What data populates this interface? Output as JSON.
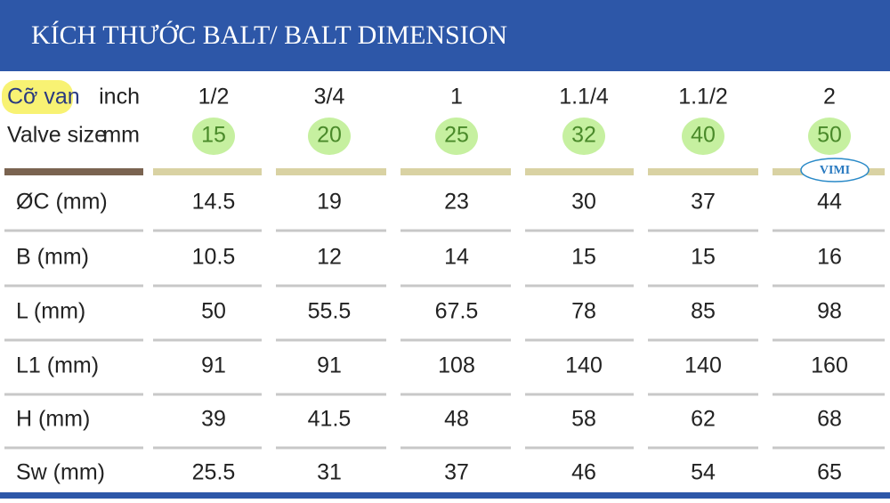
{
  "header": {
    "title": "KÍCH THƯỚC BALT/ BALT DIMENSION"
  },
  "table": {
    "size_label_vi": "Cỡ van",
    "size_label_en": "Valve size",
    "inch_unit": "inch",
    "mm_unit": "mm",
    "inch": [
      "1/2",
      "3/4",
      "1",
      "1.1/4",
      "1.1/2",
      "2"
    ],
    "mm": [
      "15",
      "20",
      "25",
      "32",
      "40",
      "50"
    ],
    "rows": [
      {
        "label": "ØC (mm)",
        "values": [
          "14.5",
          "19",
          "23",
          "30",
          "37",
          "44"
        ]
      },
      {
        "label": "B (mm)",
        "values": [
          "10.5",
          "12",
          "14",
          "15",
          "15",
          "16"
        ]
      },
      {
        "label": "L (mm)",
        "values": [
          "50",
          "55.5",
          "67.5",
          "78",
          "85",
          "98"
        ]
      },
      {
        "label": "L1 (mm)",
        "values": [
          "91",
          "91",
          "108",
          "140",
          "140",
          "160"
        ]
      },
      {
        "label": "H (mm)",
        "values": [
          "39",
          "41.5",
          "48",
          "58",
          "62",
          "68"
        ]
      },
      {
        "label": "Sw (mm)",
        "values": [
          "25.5",
          "31",
          "37",
          "46",
          "54",
          "65"
        ]
      }
    ]
  },
  "logo": "VIMI"
}
